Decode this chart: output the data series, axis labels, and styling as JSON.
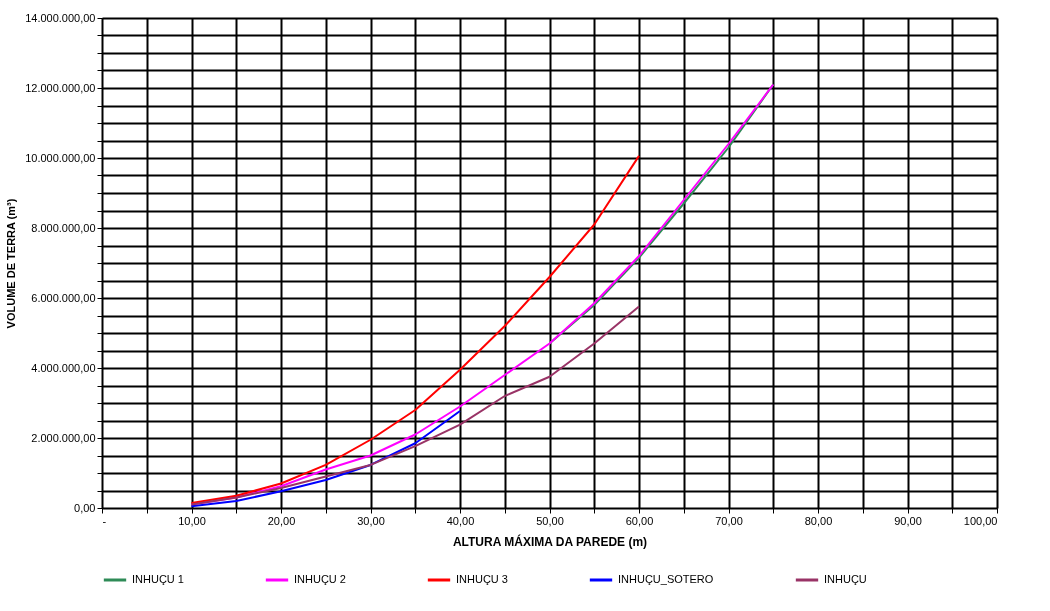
{
  "chart_data": {
    "type": "line",
    "xlabel": "ALTURA MÁXIMA DA PAREDE (m)",
    "ylabel": "VOLUME DE TERRA (m³)",
    "xlim": [
      0,
      100
    ],
    "xticks": [
      {
        "value": 0,
        "label": "-"
      },
      {
        "value": 5,
        "label": null
      },
      {
        "value": 10,
        "label": "10,00"
      },
      {
        "value": 15,
        "label": null
      },
      {
        "value": 20,
        "label": "20,00"
      },
      {
        "value": 25,
        "label": null
      },
      {
        "value": 30,
        "label": "30,00"
      },
      {
        "value": 35,
        "label": null
      },
      {
        "value": 40,
        "label": "40,00"
      },
      {
        "value": 45,
        "label": null
      },
      {
        "value": 50,
        "label": "50,00"
      },
      {
        "value": 55,
        "label": null
      },
      {
        "value": 60,
        "label": "60,00"
      },
      {
        "value": 65,
        "label": null
      },
      {
        "value": 70,
        "label": "70,00"
      },
      {
        "value": 75,
        "label": null
      },
      {
        "value": 80,
        "label": "80,00"
      },
      {
        "value": 85,
        "label": null
      },
      {
        "value": 90,
        "label": "90,00"
      },
      {
        "value": 95,
        "label": null
      },
      {
        "value": 100,
        "label": "100,00"
      }
    ],
    "ylim": [
      0,
      14000000
    ],
    "yticks": [
      {
        "value": 0,
        "label": "0,00"
      },
      {
        "value": 500000,
        "label": null
      },
      {
        "value": 1000000,
        "label": null
      },
      {
        "value": 1500000,
        "label": null
      },
      {
        "value": 2000000,
        "label": "2.000.000,00"
      },
      {
        "value": 2500000,
        "label": null
      },
      {
        "value": 3000000,
        "label": null
      },
      {
        "value": 3500000,
        "label": null
      },
      {
        "value": 4000000,
        "label": "4.000.000,00"
      },
      {
        "value": 4500000,
        "label": null
      },
      {
        "value": 5000000,
        "label": null
      },
      {
        "value": 5500000,
        "label": null
      },
      {
        "value": 6000000,
        "label": "6.000.000,00"
      },
      {
        "value": 6500000,
        "label": null
      },
      {
        "value": 7000000,
        "label": null
      },
      {
        "value": 7500000,
        "label": null
      },
      {
        "value": 8000000,
        "label": "8.000.000,00"
      },
      {
        "value": 8500000,
        "label": null
      },
      {
        "value": 9000000,
        "label": null
      },
      {
        "value": 9500000,
        "label": null
      },
      {
        "value": 10000000,
        "label": "10.000.000,00"
      },
      {
        "value": 10500000,
        "label": null
      },
      {
        "value": 11000000,
        "label": null
      },
      {
        "value": 11500000,
        "label": null
      },
      {
        "value": 12000000,
        "label": "12.000.000,00"
      },
      {
        "value": 12500000,
        "label": null
      },
      {
        "value": 13000000,
        "label": null
      },
      {
        "value": 13500000,
        "label": null
      },
      {
        "value": 14000000,
        "label": "14.000.000,00"
      }
    ],
    "grid": true,
    "legend": "bottom",
    "marker": "none",
    "line_style": "solid",
    "series": [
      {
        "name": "INHUÇU 1",
        "color": "#2e8b57",
        "x": [
          50,
          55,
          60,
          65,
          70,
          75
        ],
        "values": [
          4700000,
          5800000,
          7150000,
          8700000,
          10300000,
          12100000
        ]
      },
      {
        "name": "INHUÇU 2",
        "color": "#ff00ff",
        "x": [
          10,
          15,
          20,
          25,
          30,
          35,
          40,
          45,
          50,
          55,
          60,
          65,
          70,
          75
        ],
        "values": [
          100000,
          300000,
          620000,
          1100000,
          1500000,
          2100000,
          2900000,
          3800000,
          4700000,
          5850000,
          7200000,
          8800000,
          10400000,
          12100000
        ]
      },
      {
        "name": "INHUÇU 3",
        "color": "#ff0000",
        "x": [
          10,
          15,
          20,
          25,
          30,
          35,
          40,
          45,
          50,
          55,
          60
        ],
        "values": [
          140000,
          350000,
          700000,
          1230000,
          1950000,
          2800000,
          3950000,
          5200000,
          6600000,
          8100000,
          10060000
        ]
      },
      {
        "name": "INHUÇU_SOTERO",
        "color": "#0000ff",
        "x": [
          10,
          15,
          20,
          25,
          30,
          35,
          38,
          40
        ],
        "values": [
          50000,
          200000,
          480000,
          800000,
          1230000,
          1850000,
          2400000,
          2770000
        ]
      },
      {
        "name": "INHUÇU",
        "color": "#993366",
        "x": [
          10,
          15,
          20,
          25,
          30,
          35,
          40,
          45,
          50,
          55,
          60
        ],
        "values": [
          100000,
          300000,
          570000,
          900000,
          1230000,
          1770000,
          2380000,
          3200000,
          3750000,
          4700000,
          5760000
        ]
      }
    ]
  }
}
